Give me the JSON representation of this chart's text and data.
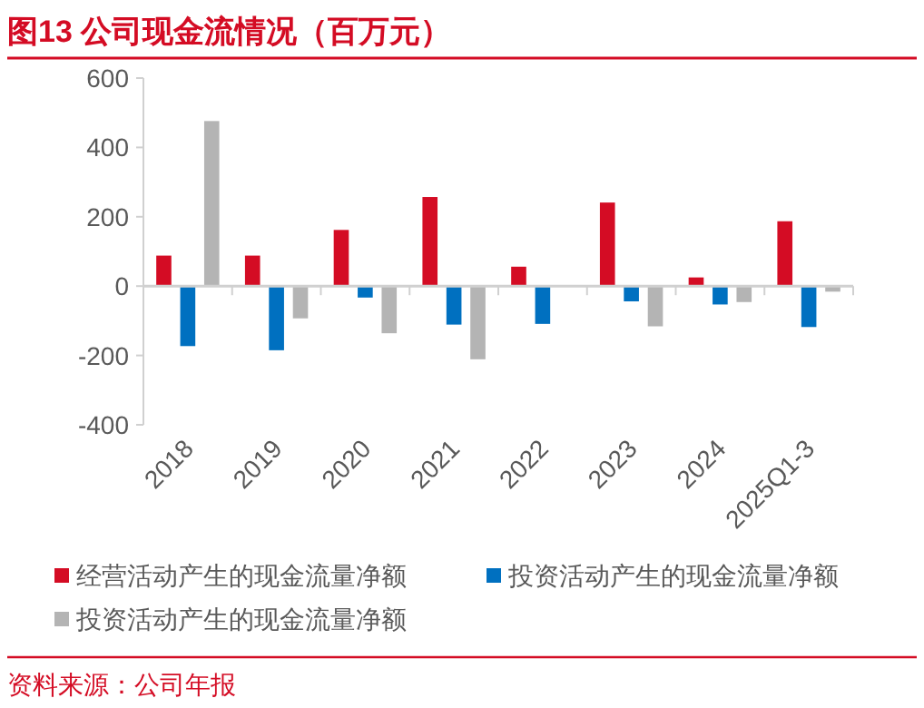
{
  "chart_data": {
    "type": "bar",
    "title": "图13  公司现金流情况（百万元）",
    "annotations": [
      "资料来源：公司年报"
    ],
    "categories": [
      "2018",
      "2019",
      "2020",
      "2021",
      "2022",
      "2023",
      "2024",
      "2025Q1-3"
    ],
    "series": [
      {
        "name": "经营活动产生的现金流量净额",
        "color": "#d40c24",
        "values": [
          88,
          88,
          162,
          257,
          56,
          241,
          25,
          187
        ]
      },
      {
        "name": "投资活动产生的现金流量净额",
        "color": "#0070c0",
        "values": [
          -173,
          -185,
          -33,
          -111,
          -109,
          -44,
          -53,
          -118
        ]
      },
      {
        "name": "投资活动产生的现金流量净额",
        "color": "#b4b4b4",
        "values": [
          476,
          -93,
          -136,
          -211,
          2,
          -116,
          -46,
          -16
        ]
      }
    ],
    "ylim": [
      -400,
      600
    ],
    "yticks": [
      -400,
      -200,
      0,
      200,
      400,
      600
    ],
    "legend": "bottom"
  }
}
